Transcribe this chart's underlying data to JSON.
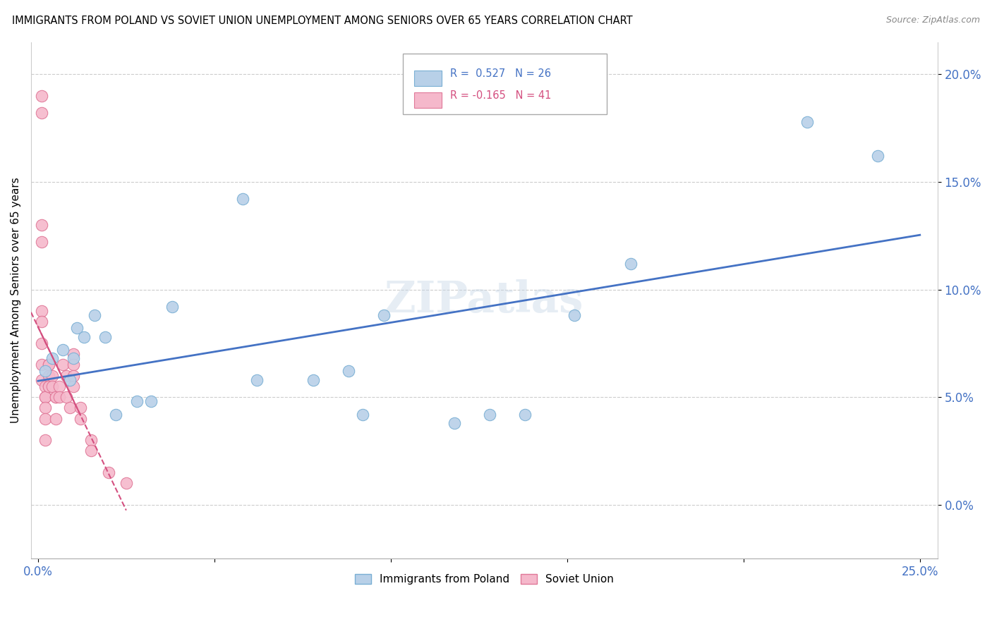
{
  "title": "IMMIGRANTS FROM POLAND VS SOVIET UNION UNEMPLOYMENT AMONG SENIORS OVER 65 YEARS CORRELATION CHART",
  "source": "Source: ZipAtlas.com",
  "ylabel": "Unemployment Among Seniors over 65 years",
  "xlim": [
    -0.002,
    0.255
  ],
  "ylim": [
    -0.025,
    0.215
  ],
  "xtick_vals": [
    0.0,
    0.25
  ],
  "ytick_vals": [
    0.0,
    0.05,
    0.1,
    0.15,
    0.2
  ],
  "poland_color": "#b8d0e8",
  "soviet_color": "#f5b8cb",
  "poland_edge": "#7aafd4",
  "soviet_edge": "#e07898",
  "line_poland_color": "#4472c4",
  "line_soviet_color": "#d45080",
  "R_poland": 0.527,
  "N_poland": 26,
  "R_soviet": -0.165,
  "N_soviet": 41,
  "poland_x": [
    0.002,
    0.004,
    0.007,
    0.009,
    0.01,
    0.011,
    0.013,
    0.016,
    0.019,
    0.022,
    0.028,
    0.032,
    0.038,
    0.058,
    0.062,
    0.078,
    0.088,
    0.092,
    0.098,
    0.118,
    0.128,
    0.138,
    0.152,
    0.168,
    0.218,
    0.238
  ],
  "poland_y": [
    0.062,
    0.068,
    0.072,
    0.058,
    0.068,
    0.082,
    0.078,
    0.088,
    0.078,
    0.042,
    0.048,
    0.048,
    0.092,
    0.142,
    0.058,
    0.058,
    0.062,
    0.042,
    0.088,
    0.038,
    0.042,
    0.042,
    0.088,
    0.112,
    0.178,
    0.162
  ],
  "soviet_x": [
    0.001,
    0.001,
    0.001,
    0.001,
    0.001,
    0.001,
    0.001,
    0.001,
    0.001,
    0.002,
    0.002,
    0.002,
    0.002,
    0.002,
    0.002,
    0.003,
    0.003,
    0.003,
    0.003,
    0.003,
    0.004,
    0.004,
    0.005,
    0.005,
    0.005,
    0.006,
    0.006,
    0.007,
    0.008,
    0.008,
    0.009,
    0.01,
    0.01,
    0.01,
    0.01,
    0.012,
    0.012,
    0.015,
    0.015,
    0.02,
    0.025
  ],
  "soviet_y": [
    0.19,
    0.182,
    0.13,
    0.122,
    0.09,
    0.085,
    0.075,
    0.065,
    0.058,
    0.055,
    0.05,
    0.05,
    0.045,
    0.04,
    0.03,
    0.065,
    0.065,
    0.06,
    0.055,
    0.055,
    0.06,
    0.055,
    0.05,
    0.05,
    0.04,
    0.055,
    0.05,
    0.065,
    0.06,
    0.05,
    0.045,
    0.07,
    0.065,
    0.06,
    0.055,
    0.045,
    0.04,
    0.03,
    0.025,
    0.015,
    0.01
  ]
}
